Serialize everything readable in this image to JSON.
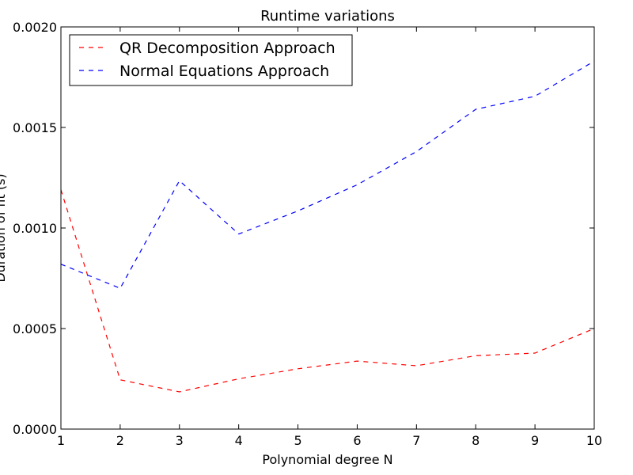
{
  "chart_data": {
    "type": "line",
    "title": "Runtime variations",
    "xlabel": "Polynomial degree N",
    "ylabel": "Duration of fit (s)",
    "x": [
      1,
      2,
      3,
      4,
      5,
      6,
      7,
      8,
      9,
      10
    ],
    "xlim": [
      1,
      10
    ],
    "ylim": [
      0,
      0.002
    ],
    "xticks": [
      "1",
      "2",
      "3",
      "4",
      "5",
      "6",
      "7",
      "8",
      "9",
      "10"
    ],
    "yticks": [
      {
        "value": 0,
        "label": "0.0000"
      },
      {
        "value": 0.0005,
        "label": "0.0005"
      },
      {
        "value": 0.001,
        "label": "0.0010"
      },
      {
        "value": 0.0015,
        "label": "0.0015"
      },
      {
        "value": 0.002,
        "label": "0.0020"
      }
    ],
    "grid": false,
    "legend_position": "top-left",
    "series": [
      {
        "name": "QR Decomposition Approach",
        "color": "#ff0000",
        "style": "dashed",
        "values": [
          0.00119,
          0.000245,
          0.000185,
          0.00025,
          0.0003,
          0.000338,
          0.000315,
          0.000365,
          0.000378,
          0.0005
        ]
      },
      {
        "name": "Normal Equations Approach",
        "color": "#0000ff",
        "style": "dashed",
        "values": [
          0.00082,
          0.0007,
          0.001235,
          0.00097,
          0.001085,
          0.001215,
          0.00138,
          0.00159,
          0.001655,
          0.00183
        ]
      }
    ]
  }
}
